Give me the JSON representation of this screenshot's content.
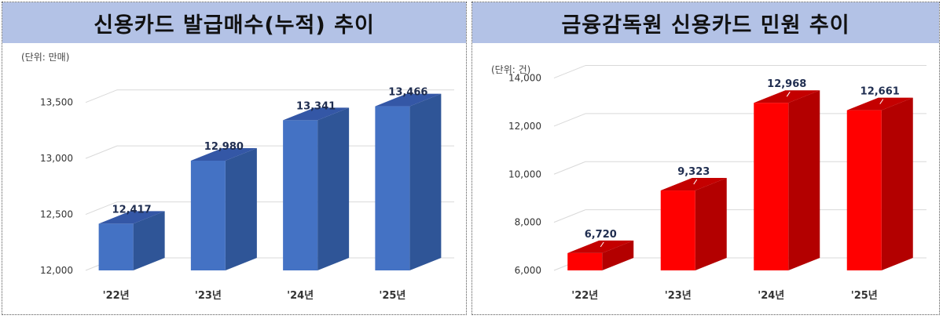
{
  "chart_data": [
    {
      "type": "bar",
      "title": "신용카드 발급매수(누적) 추이",
      "unit_label": "(단위: 만매)",
      "categories": [
        "'22년",
        "'23년",
        "'24년",
        "'25년"
      ],
      "values": [
        12417,
        12980,
        13341,
        13466
      ],
      "value_labels": [
        "12,417",
        "12,980",
        "13,341",
        "13,466"
      ],
      "yticks": [
        12000,
        12500,
        13000,
        13500
      ],
      "ytick_labels": [
        "12,000",
        "12,500",
        "13,000",
        "13,500"
      ],
      "ylim": [
        12000,
        13750
      ],
      "grid": true,
      "colors": {
        "front": "#4472c4",
        "top": "#3457a6",
        "side": "#2f5597"
      }
    },
    {
      "type": "bar",
      "title": "금융감독원 신용카드 민원 추이",
      "unit_label": "(단위: 건)",
      "categories": [
        "'22년",
        "'23년",
        "'24년",
        "'25년"
      ],
      "values": [
        6720,
        9323,
        12968,
        12661
      ],
      "value_labels": [
        "6,720",
        "9,323",
        "12,968",
        "12,661"
      ],
      "yticks": [
        6000,
        8000,
        10000,
        12000,
        14000
      ],
      "ytick_labels": [
        "6,000",
        "8,000",
        "10,000",
        "12,000",
        "14,000"
      ],
      "ylim": [
        6000,
        14800
      ],
      "grid": true,
      "colors": {
        "front": "#ff0000",
        "top": "#c40000",
        "side": "#b30000"
      }
    }
  ]
}
